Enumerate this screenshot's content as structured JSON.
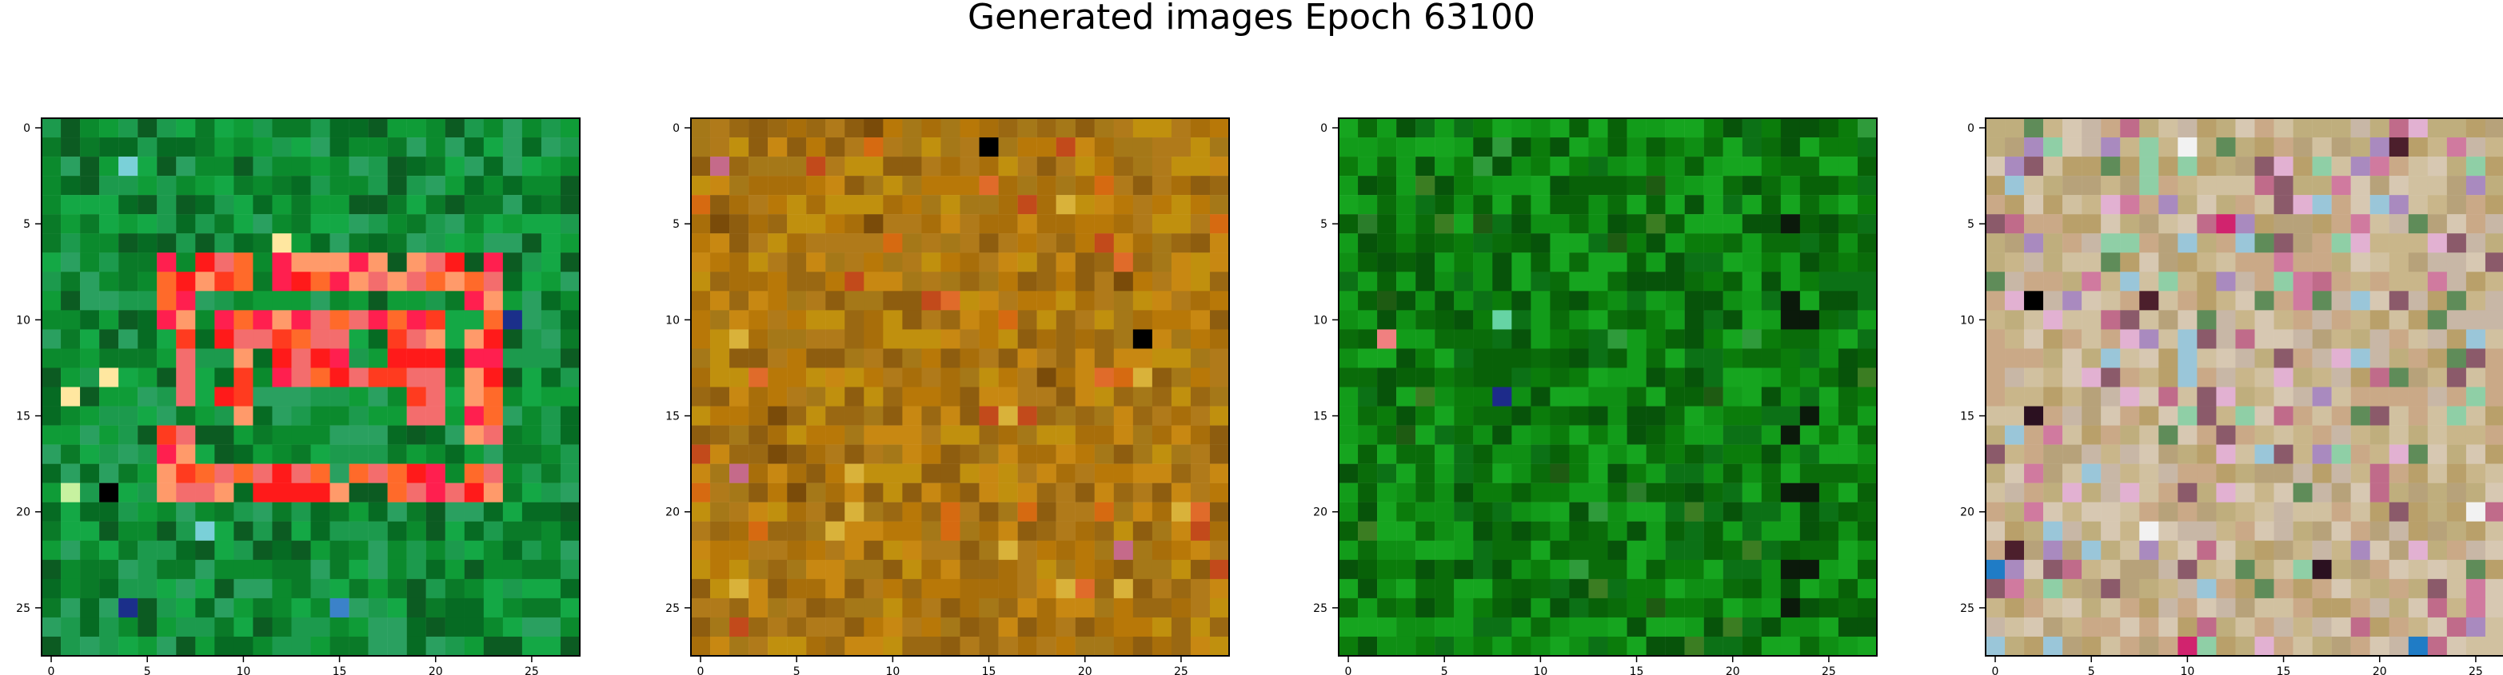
{
  "figure": {
    "title": "Generated images Epoch 63100"
  },
  "image_grid": {
    "rows": 28,
    "cols": 28,
    "axis_ticks": [
      "0",
      "5",
      "10",
      "15",
      "20",
      "25"
    ],
    "panels": [
      {
        "name": "panel-1",
        "palette": [
          "#0b8a2d",
          "#0a7a28",
          "#0f9c37",
          "#066b23",
          "#14a845",
          "#0c5b22",
          "#1c9a4d",
          "#2aa060"
        ],
        "accent_palette": [
          "#ff1a1a",
          "#ff3b1f",
          "#ff6a2a",
          "#ff9a6a",
          "#ff1f4f",
          "#f36d6d"
        ],
        "rare_palette": [
          "#000000",
          "#1b2f8a",
          "#3b82c9",
          "#7ad0d8",
          "#c7f2a0",
          "#ffe7a0"
        ]
      },
      {
        "name": "panel-2",
        "palette": [
          "#b87808",
          "#a86e0a",
          "#c88812",
          "#9a6812",
          "#b07a1a",
          "#8e5d0f",
          "#c0900e",
          "#a57818"
        ],
        "accent_palette": [
          "#d66a11",
          "#e06b2a",
          "#7a4b09",
          "#c24a1b",
          "#d9b23a"
        ],
        "rare_palette": [
          "#000000",
          "#2e4c3a",
          "#6c7b5a",
          "#c56a8a",
          "#f5d2a0",
          "#ffffff"
        ]
      },
      {
        "name": "panel-3",
        "palette": [
          "#0b7c0b",
          "#0a6c0a",
          "#0f8f14",
          "#086108",
          "#129c1a",
          "#0c7116",
          "#07530a",
          "#16a51f"
        ],
        "accent_palette": [
          "#2a7d2a",
          "#1e5b12",
          "#2f9b3b",
          "#3b7d22"
        ],
        "rare_palette": [
          "#000000",
          "#0b1a6c",
          "#1d2b8a",
          "#ff6a2a",
          "#f08080",
          "#66d4a4",
          "#b6e0d0"
        ]
      },
      {
        "name": "panel-4",
        "palette": [
          "#c9b68a",
          "#bfae7d",
          "#d1c1a0",
          "#b7a27a",
          "#caa987",
          "#c8b7a6",
          "#d7c8b2",
          "#b9a06a"
        ],
        "accent_palette": [
          "#d07a9f",
          "#c06b8a",
          "#a98abf",
          "#8fcfa6",
          "#9ac6d9",
          "#e2b1d2",
          "#8b5a6a",
          "#5f8c59"
        ],
        "rare_palette": [
          "#000000",
          "#2b1020",
          "#4c1f2c",
          "#1f7cc6",
          "#d1236e",
          "#f2f2f2"
        ]
      }
    ]
  }
}
